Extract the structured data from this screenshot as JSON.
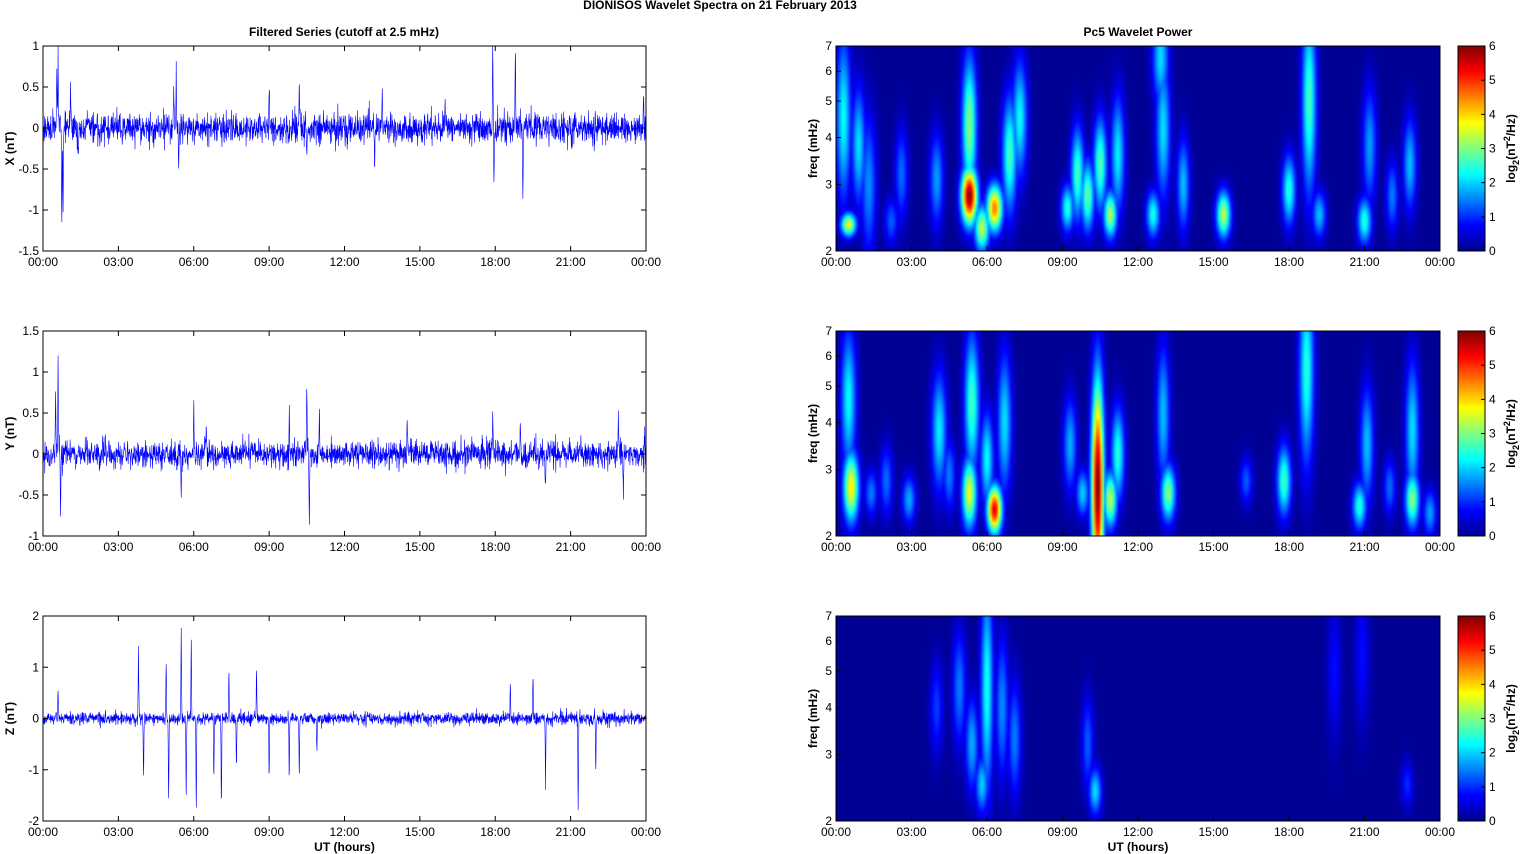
{
  "figure": {
    "suptitle": "DIONISOS Wavelet Spectra on 21 February  2013",
    "left_title": "Filtered Series (cutoff at 2.5 mHz)",
    "right_title": "Pc5 Wavelet Power",
    "xlabel": "UT (hours)",
    "freq_label": "freq (mHz)",
    "colorbar_label": "log2(nT2/Hz)",
    "x_ticks": [
      "00:00",
      "03:00",
      "06:00",
      "09:00",
      "12:00",
      "15:00",
      "18:00",
      "21:00",
      "00:00"
    ],
    "colors": {
      "trace": "#0000ff",
      "spectrum_background": "#00008f"
    }
  },
  "chart_data": [
    {
      "id": "x_series",
      "type": "line",
      "ylabel": "X (nT)",
      "xlim": [
        0,
        24
      ],
      "ylim": [
        -1.5,
        1
      ],
      "y_ticks": [
        "-1.5",
        "-1",
        "-0.5",
        "0",
        "0.5",
        "1"
      ],
      "noise_std": 0.09,
      "events": [
        [
          0.6,
          0.82
        ],
        [
          0.75,
          -1.22
        ],
        [
          0.55,
          0.7
        ],
        [
          0.8,
          -0.75
        ],
        [
          1.1,
          0.45
        ],
        [
          1.4,
          -0.4
        ],
        [
          5.3,
          0.78
        ],
        [
          5.4,
          -0.52
        ],
        [
          5.2,
          0.42
        ],
        [
          10.2,
          0.52
        ],
        [
          10.5,
          -0.43
        ],
        [
          9.0,
          0.42
        ],
        [
          13.5,
          0.48
        ],
        [
          13.2,
          -0.45
        ],
        [
          16.0,
          0.4
        ],
        [
          17.9,
          0.93
        ],
        [
          17.95,
          -0.77
        ],
        [
          18.8,
          0.95
        ],
        [
          19.1,
          -0.72
        ],
        [
          23.9,
          0.38
        ]
      ]
    },
    {
      "id": "y_series",
      "type": "line",
      "ylabel": "Y (nT)",
      "xlim": [
        0,
        24
      ],
      "ylim": [
        -1,
        1.5
      ],
      "y_ticks": [
        "-1",
        "-0.5",
        "0",
        "0.5",
        "1",
        "1.5"
      ],
      "noise_std": 0.08,
      "events": [
        [
          0.6,
          1.0
        ],
        [
          0.7,
          -0.73
        ],
        [
          0.5,
          0.6
        ],
        [
          6.0,
          0.55
        ],
        [
          5.5,
          -0.5
        ],
        [
          6.5,
          0.45
        ],
        [
          9.8,
          0.52
        ],
        [
          10.5,
          0.8
        ],
        [
          10.6,
          -0.78
        ],
        [
          11.0,
          0.45
        ],
        [
          14.5,
          0.4
        ],
        [
          17.9,
          0.5
        ],
        [
          19.0,
          0.5
        ],
        [
          20.0,
          -0.4
        ],
        [
          22.9,
          0.55
        ],
        [
          23.1,
          -0.45
        ],
        [
          23.95,
          0.35
        ]
      ]
    },
    {
      "id": "z_series",
      "type": "line",
      "ylabel": "Z (nT)",
      "xlim": [
        0,
        24
      ],
      "ylim": [
        -2,
        2
      ],
      "y_ticks": [
        "-2",
        "-1",
        "0",
        "1",
        "2"
      ],
      "noise_std": 0.06,
      "events": [
        [
          0.6,
          0.55
        ],
        [
          3.8,
          1.25
        ],
        [
          4.0,
          -1.1
        ],
        [
          4.9,
          1.05
        ],
        [
          5.0,
          -1.7
        ],
        [
          5.5,
          1.65
        ],
        [
          5.7,
          -1.4
        ],
        [
          5.9,
          1.5
        ],
        [
          6.1,
          -1.75
        ],
        [
          6.8,
          -1.2
        ],
        [
          7.1,
          -1.8
        ],
        [
          7.4,
          0.8
        ],
        [
          7.7,
          -1.0
        ],
        [
          8.5,
          0.9
        ],
        [
          9.0,
          -1.2
        ],
        [
          9.8,
          -1.15
        ],
        [
          10.2,
          -1.2
        ],
        [
          10.9,
          -0.65
        ],
        [
          18.6,
          0.7
        ],
        [
          19.5,
          0.8
        ],
        [
          20.0,
          -1.3
        ],
        [
          21.3,
          -1.75
        ],
        [
          22.0,
          -1.0
        ]
      ]
    },
    {
      "id": "x_power",
      "type": "heatmap",
      "ylabel": "freq (mHz)",
      "xlim": [
        0,
        24
      ],
      "ylim": [
        2,
        7
      ],
      "yscale": "log",
      "y_ticks": [
        "2",
        "3",
        "4",
        "5",
        "6",
        "7"
      ],
      "colorbar": {
        "label": "log2(nT2/Hz)",
        "range": [
          0,
          6
        ],
        "ticks": [
          "0",
          "1",
          "2",
          "3",
          "4",
          "5",
          "6"
        ]
      },
      "blobs": [
        [
          0.5,
          2.35,
          3.6,
          0.1,
          0.05
        ],
        [
          0.3,
          4.5,
          2.2,
          0.05,
          0.35
        ],
        [
          0.9,
          3.8,
          2.0,
          0.05,
          0.25
        ],
        [
          1.3,
          3.0,
          1.5,
          0.08,
          0.3
        ],
        [
          2.2,
          2.4,
          1.2,
          0.08,
          0.1
        ],
        [
          2.6,
          3.2,
          1.3,
          0.05,
          0.2
        ],
        [
          4.0,
          3.1,
          1.6,
          0.06,
          0.2
        ],
        [
          5.3,
          2.8,
          6.0,
          0.09,
          0.12
        ],
        [
          5.3,
          4.3,
          3.0,
          0.05,
          0.3
        ],
        [
          5.8,
          2.3,
          3.3,
          0.1,
          0.1
        ],
        [
          6.3,
          2.6,
          4.5,
          0.1,
          0.1
        ],
        [
          6.9,
          3.6,
          2.6,
          0.06,
          0.25
        ],
        [
          7.3,
          4.5,
          2.2,
          0.05,
          0.25
        ],
        [
          9.2,
          2.6,
          2.4,
          0.06,
          0.1
        ],
        [
          9.6,
          3.2,
          2.6,
          0.05,
          0.2
        ],
        [
          10.0,
          2.8,
          2.8,
          0.06,
          0.15
        ],
        [
          10.5,
          3.4,
          2.7,
          0.05,
          0.2
        ],
        [
          10.9,
          2.5,
          3.2,
          0.07,
          0.1
        ],
        [
          11.2,
          3.6,
          2.1,
          0.05,
          0.25
        ],
        [
          12.6,
          2.5,
          2.3,
          0.07,
          0.1
        ],
        [
          13.0,
          4.2,
          2.0,
          0.05,
          0.3
        ],
        [
          13.8,
          3.0,
          1.8,
          0.05,
          0.2
        ],
        [
          15.4,
          2.5,
          3.3,
          0.08,
          0.1
        ],
        [
          18.0,
          2.9,
          2.4,
          0.06,
          0.15
        ],
        [
          18.8,
          5.0,
          2.6,
          0.04,
          0.4
        ],
        [
          19.2,
          2.5,
          1.8,
          0.07,
          0.1
        ],
        [
          21.0,
          2.4,
          2.4,
          0.08,
          0.1
        ],
        [
          21.2,
          3.8,
          1.6,
          0.05,
          0.25
        ],
        [
          22.1,
          2.8,
          1.4,
          0.05,
          0.15
        ],
        [
          22.8,
          3.4,
          1.8,
          0.05,
          0.2
        ],
        [
          12.9,
          6.5,
          2.0,
          0.04,
          0.2
        ]
      ]
    },
    {
      "id": "y_power",
      "type": "heatmap",
      "ylabel": "freq (mHz)",
      "xlim": [
        0,
        24
      ],
      "ylim": [
        2,
        7
      ],
      "yscale": "log",
      "y_ticks": [
        "2",
        "3",
        "4",
        "5",
        "6",
        "7"
      ],
      "colorbar": {
        "label": "log2(nT2/Hz)",
        "range": [
          0,
          6
        ],
        "ticks": [
          "0",
          "1",
          "2",
          "3",
          "4",
          "5",
          "6"
        ]
      },
      "blobs": [
        [
          0.6,
          2.7,
          3.8,
          0.09,
          0.15
        ],
        [
          0.5,
          4.6,
          2.2,
          0.05,
          0.3
        ],
        [
          1.4,
          2.6,
          1.4,
          0.06,
          0.1
        ],
        [
          2.0,
          2.8,
          1.3,
          0.06,
          0.15
        ],
        [
          2.9,
          2.5,
          1.7,
          0.07,
          0.1
        ],
        [
          4.1,
          3.8,
          2.1,
          0.06,
          0.25
        ],
        [
          4.5,
          2.9,
          1.4,
          0.05,
          0.15
        ],
        [
          5.3,
          2.6,
          3.6,
          0.08,
          0.15
        ],
        [
          5.4,
          4.5,
          2.6,
          0.05,
          0.3
        ],
        [
          6.3,
          2.35,
          5.4,
          0.09,
          0.1
        ],
        [
          6.0,
          3.2,
          2.2,
          0.05,
          0.2
        ],
        [
          6.7,
          4.0,
          2.0,
          0.05,
          0.3
        ],
        [
          9.3,
          3.5,
          1.7,
          0.05,
          0.2
        ],
        [
          9.8,
          2.6,
          1.9,
          0.06,
          0.1
        ],
        [
          10.4,
          2.7,
          6.0,
          0.05,
          0.45
        ],
        [
          10.9,
          2.5,
          3.3,
          0.07,
          0.12
        ],
        [
          11.2,
          3.3,
          2.4,
          0.05,
          0.2
        ],
        [
          13.2,
          2.6,
          3.0,
          0.08,
          0.12
        ],
        [
          13.0,
          4.2,
          1.8,
          0.04,
          0.3
        ],
        [
          16.3,
          2.8,
          1.2,
          0.05,
          0.1
        ],
        [
          17.8,
          2.8,
          2.6,
          0.07,
          0.15
        ],
        [
          18.7,
          5.5,
          2.4,
          0.04,
          0.4
        ],
        [
          20.8,
          2.4,
          2.4,
          0.08,
          0.1
        ],
        [
          21.1,
          3.5,
          1.8,
          0.05,
          0.25
        ],
        [
          22.0,
          2.7,
          1.3,
          0.05,
          0.12
        ],
        [
          22.9,
          2.5,
          3.0,
          0.08,
          0.12
        ],
        [
          22.9,
          3.8,
          2.0,
          0.05,
          0.3
        ],
        [
          23.6,
          2.3,
          1.6,
          0.07,
          0.1
        ]
      ]
    },
    {
      "id": "z_power",
      "type": "heatmap",
      "ylabel": "freq (mHz)",
      "xlim": [
        0,
        24
      ],
      "ylim": [
        2,
        7
      ],
      "yscale": "log",
      "y_ticks": [
        "2",
        "3",
        "4",
        "5",
        "6",
        "7"
      ],
      "colorbar": {
        "label": "log2(nT2/Hz)",
        "range": [
          0,
          6
        ],
        "ticks": [
          "0",
          "1",
          "2",
          "3",
          "4",
          "5",
          "6"
        ]
      },
      "blobs": [
        [
          4.0,
          4.0,
          1.0,
          0.04,
          0.2
        ],
        [
          4.9,
          4.5,
          1.4,
          0.04,
          0.25
        ],
        [
          5.4,
          3.2,
          1.7,
          0.05,
          0.2
        ],
        [
          5.8,
          2.5,
          1.9,
          0.06,
          0.12
        ],
        [
          6.0,
          4.5,
          2.3,
          0.03,
          0.45
        ],
        [
          6.6,
          4.0,
          1.5,
          0.04,
          0.3
        ],
        [
          7.1,
          3.3,
          1.4,
          0.05,
          0.25
        ],
        [
          10.3,
          2.4,
          2.0,
          0.06,
          0.1
        ],
        [
          10.0,
          3.2,
          1.2,
          0.04,
          0.2
        ],
        [
          19.8,
          5.0,
          0.7,
          0.04,
          0.3
        ],
        [
          20.9,
          5.5,
          0.7,
          0.04,
          0.3
        ],
        [
          22.7,
          2.5,
          0.9,
          0.05,
          0.1
        ]
      ]
    }
  ]
}
